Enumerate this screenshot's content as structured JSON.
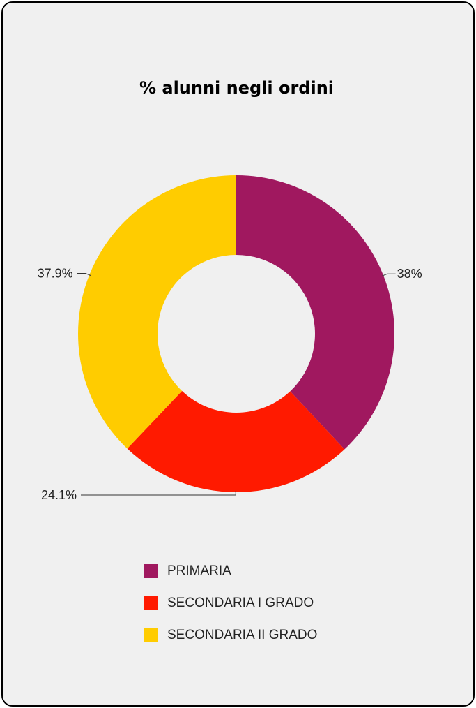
{
  "chart_data": {
    "type": "pie",
    "variant": "donut",
    "title": "% alunni negli ordini",
    "categories": [
      "PRIMARIA",
      "SECONDARIA I GRADO",
      "SECONDARIA II GRADO"
    ],
    "values": [
      38.0,
      24.1,
      37.9
    ],
    "data_labels": [
      "38%",
      "24.1%",
      "37.9%"
    ],
    "colors": [
      "#a0185f",
      "#ff1a00",
      "#ffcc00"
    ],
    "legend_position": "bottom"
  }
}
